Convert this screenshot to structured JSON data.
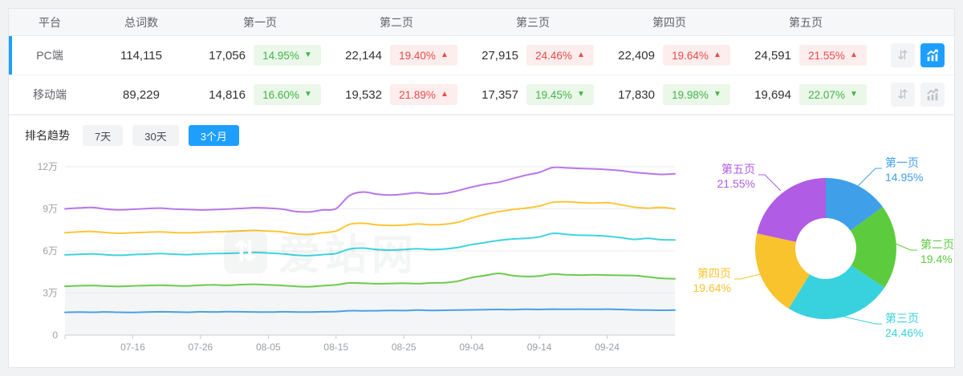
{
  "colors": {
    "accent": "#1E9FFF",
    "increase_up": "#E74C4C",
    "decrease_down": "#44B549"
  },
  "icons": {
    "sort_glyph": "⇵"
  },
  "table": {
    "headers": [
      "平台",
      "总词数",
      "第一页",
      "第二页",
      "第三页",
      "第四页",
      "第五页"
    ],
    "rows": [
      {
        "platform": "PC端",
        "total": "114,115",
        "selected": true,
        "chart_active": true,
        "pages": [
          {
            "value": "17,056",
            "pct": "14.95%",
            "dir": "down"
          },
          {
            "value": "22,144",
            "pct": "19.40%",
            "dir": "up"
          },
          {
            "value": "27,915",
            "pct": "24.46%",
            "dir": "up"
          },
          {
            "value": "22,409",
            "pct": "19.64%",
            "dir": "up"
          },
          {
            "value": "24,591",
            "pct": "21.55%",
            "dir": "up"
          }
        ]
      },
      {
        "platform": "移动端",
        "total": "89,229",
        "selected": false,
        "chart_active": false,
        "pages": [
          {
            "value": "14,816",
            "pct": "16.60%",
            "dir": "down"
          },
          {
            "value": "19,532",
            "pct": "21.89%",
            "dir": "up"
          },
          {
            "value": "17,357",
            "pct": "19.45%",
            "dir": "down"
          },
          {
            "value": "17,830",
            "pct": "19.98%",
            "dir": "down"
          },
          {
            "value": "19,694",
            "pct": "22.07%",
            "dir": "down"
          }
        ]
      }
    ]
  },
  "trend": {
    "label": "排名趋势",
    "tabs": [
      {
        "label": "7天",
        "active": false
      },
      {
        "label": "30天",
        "active": false
      },
      {
        "label": "3个月",
        "active": true
      }
    ]
  },
  "watermark": "爱站网",
  "chart_data": [
    {
      "type": "line",
      "title": "排名趋势(3个月)",
      "grid": true,
      "ylim": [
        0,
        12
      ],
      "y_unit": "万",
      "y_ticks": [
        {
          "label": "0",
          "value": 0
        },
        {
          "label": "3万",
          "value": 3
        },
        {
          "label": "6万",
          "value": 6
        },
        {
          "label": "9万",
          "value": 9
        },
        {
          "label": "12万",
          "value": 12
        }
      ],
      "x_tick_labels": [
        "07-16",
        "07-26",
        "08-05",
        "08-15",
        "08-25",
        "09-04",
        "09-14",
        "09-24"
      ],
      "x_tick_indices": [
        5,
        10,
        15,
        20,
        25,
        30,
        35,
        40
      ],
      "series": [
        {
          "name": "第一页",
          "color": "#4AA0E8",
          "area_fill": false,
          "values": [
            1.62,
            1.64,
            1.63,
            1.65,
            1.63,
            1.62,
            1.64,
            1.66,
            1.65,
            1.63,
            1.66,
            1.65,
            1.67,
            1.66,
            1.65,
            1.64,
            1.66,
            1.65,
            1.64,
            1.66,
            1.68,
            1.74,
            1.73,
            1.74,
            1.76,
            1.75,
            1.78,
            1.76,
            1.77,
            1.79,
            1.8,
            1.82,
            1.83,
            1.82,
            1.84,
            1.83,
            1.85,
            1.84,
            1.85,
            1.84,
            1.85,
            1.83,
            1.8,
            1.78,
            1.77,
            1.78
          ]
        },
        {
          "name": "第二页",
          "color": "#6CCB4E",
          "area_fill": true,
          "values": [
            3.48,
            3.52,
            3.54,
            3.5,
            3.47,
            3.51,
            3.54,
            3.56,
            3.53,
            3.51,
            3.56,
            3.58,
            3.55,
            3.6,
            3.62,
            3.58,
            3.54,
            3.48,
            3.45,
            3.52,
            3.58,
            3.72,
            3.7,
            3.66,
            3.68,
            3.7,
            3.67,
            3.72,
            3.74,
            3.85,
            4.1,
            4.25,
            4.4,
            4.25,
            4.18,
            4.22,
            4.35,
            4.3,
            4.28,
            4.3,
            4.28,
            4.26,
            4.24,
            4.15,
            4.05,
            4.02
          ]
        },
        {
          "name": "第三页",
          "color": "#3FD4DF",
          "area_fill": false,
          "values": [
            5.72,
            5.76,
            5.79,
            5.73,
            5.69,
            5.74,
            5.77,
            5.81,
            5.77,
            5.74,
            5.79,
            5.81,
            5.83,
            5.86,
            5.89,
            5.85,
            5.8,
            5.7,
            5.66,
            5.74,
            5.82,
            6.14,
            6.2,
            6.1,
            6.06,
            6.1,
            6.16,
            6.1,
            6.14,
            6.25,
            6.45,
            6.6,
            6.75,
            6.85,
            6.9,
            7.0,
            7.25,
            7.18,
            7.12,
            7.1,
            7.05,
            6.95,
            6.82,
            6.9,
            6.8,
            6.78
          ]
        },
        {
          "name": "第四页",
          "color": "#FBC637",
          "area_fill": false,
          "values": [
            7.3,
            7.36,
            7.39,
            7.31,
            7.26,
            7.3,
            7.33,
            7.36,
            7.31,
            7.29,
            7.33,
            7.36,
            7.39,
            7.43,
            7.46,
            7.41,
            7.36,
            7.22,
            7.18,
            7.3,
            7.42,
            7.9,
            7.97,
            7.86,
            7.81,
            7.84,
            7.92,
            7.86,
            7.9,
            8.05,
            8.35,
            8.6,
            8.8,
            8.95,
            9.05,
            9.2,
            9.47,
            9.5,
            9.45,
            9.42,
            9.44,
            9.3,
            9.12,
            9.05,
            9.1,
            9.0
          ]
        },
        {
          "name": "第五页",
          "color": "#B877E8",
          "area_fill": false,
          "values": [
            9.0,
            9.06,
            9.1,
            8.99,
            8.93,
            8.97,
            9.02,
            9.05,
            8.99,
            8.96,
            8.92,
            8.95,
            8.98,
            9.03,
            9.08,
            9.05,
            8.98,
            8.82,
            8.78,
            8.92,
            9.02,
            9.95,
            10.2,
            10.05,
            9.98,
            10.05,
            10.15,
            10.05,
            10.1,
            10.3,
            10.55,
            10.75,
            10.9,
            11.15,
            11.4,
            11.6,
            11.95,
            11.92,
            11.88,
            11.85,
            11.8,
            11.72,
            11.6,
            11.52,
            11.45,
            11.5
          ]
        }
      ]
    },
    {
      "type": "pie",
      "donut": true,
      "slices": [
        {
          "label": "第一页",
          "pct": 14.95,
          "pct_label": "14.95%",
          "color": "#3F9FE8"
        },
        {
          "label": "第二页",
          "pct": 19.4,
          "pct_label": "19.4%",
          "color": "#5DCB3E"
        },
        {
          "label": "第三页",
          "pct": 24.46,
          "pct_label": "24.46%",
          "color": "#38D1DE"
        },
        {
          "label": "第四页",
          "pct": 19.64,
          "pct_label": "19.64%",
          "color": "#F8C32D"
        },
        {
          "label": "第五页",
          "pct": 21.55,
          "pct_label": "21.55%",
          "color": "#B05CE5"
        }
      ]
    }
  ]
}
